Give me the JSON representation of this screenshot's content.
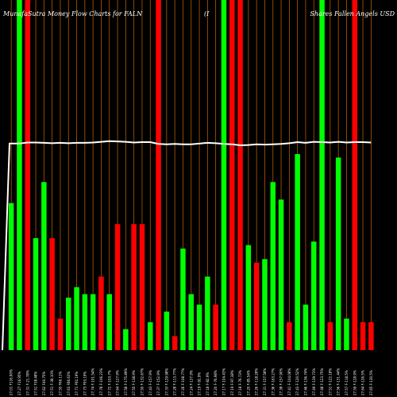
{
  "header": {
    "title_left": "MunafaSutra  Money Flow  Charts for FALN",
    "title_mid": "(I",
    "title_right": "Shares Fallen Angels USD"
  },
  "colors": {
    "background": "#000000",
    "up": "#00ff00",
    "down": "#ff0000",
    "line": "#ffffff",
    "grid": "#b35a00"
  },
  "chart_data": {
    "type": "bar",
    "title": "MunafaSutra  Money Flow  Charts for FALN (I Shares Fallen Angels USD",
    "ylim": [
      0,
      100
    ],
    "grid": true,
    "categories": [
      "27.01 F116.90%",
      "27.27 F16.95%",
      "27.31 F-21.78%",
      "27.51 F38.48%",
      "27.62 F40.75%",
      "27.51 F-38.10%",
      "27.55 F66.11%",
      "27.63 F86.63%",
      "27.71 F92.19%",
      "27.73 F93.19%",
      "27.74 F-101.54%",
      "27.78 F-106.23%",
      "27.72 F-103.7%",
      "27.64 F-127.9%",
      "27.58 F-175.89%",
      "27.55 F-138.9%",
      "27.50 F-132.67%",
      "27.43 F-157.9%",
      "27.37 F-152.9%",
      "27.33 F-129.98%",
      "27.28 F-113.77%",
      "27.26 F-108.77%",
      "27.24 F-137.9%",
      "27.19 F-92.9%",
      "27.18 F-82.9%",
      "27.20 F-76.98%",
      "27.17 F-104.43%",
      "27.19 F-97.38%",
      "27.18 F-76.73%",
      "27.20 F-85.54%",
      "27.26 F-118.28%",
      "27.31 F-157.58%",
      "27.36 F-163.27%",
      "27.38 F-157.90%",
      "27.41 F-104.08%",
      "27.43 F-120.52%",
      "27.46 F-136.74%",
      "27.49 F-139.73%",
      "27.48 F-123.75%",
      "27.51 F-122.18%",
      "27.56 F-131.44%",
      "27.57 F-118.5%",
      "27.59 F-128.9%",
      "27.64 F-126.5%",
      "27.65 F-130.5%"
    ],
    "series": [
      {
        "direction": [
          "up",
          "up",
          "down",
          "up",
          "up",
          "down",
          "down",
          "up",
          "up",
          "up",
          "up",
          "down",
          "up",
          "down",
          "up",
          "down",
          "down",
          "up",
          "down",
          "up",
          "down",
          "up",
          "up",
          "up",
          "up",
          "down",
          "up",
          "down",
          "down",
          "up",
          "down",
          "up",
          "up",
          "up",
          "down",
          "up",
          "up",
          "up",
          "up",
          "down",
          "up",
          "up",
          "down",
          "down",
          "down"
        ],
        "values": [
          42,
          100,
          100,
          32,
          48,
          32,
          9,
          15,
          18,
          16,
          16,
          21,
          16,
          36,
          6,
          36,
          36,
          8,
          100,
          11,
          4,
          29,
          16,
          13,
          21,
          13,
          100,
          100,
          100,
          30,
          25,
          26,
          48,
          43,
          8,
          56,
          13,
          31,
          100,
          8,
          55,
          9,
          100,
          8,
          8
        ]
      }
    ],
    "line": {
      "values": [
        59,
        59,
        59.3,
        59.3,
        59.2,
        59.1,
        59.2,
        59.1,
        59.2,
        59.2,
        59.3,
        59.5,
        59.7,
        59.6,
        59.5,
        59.3,
        59.4,
        59.4,
        58.9,
        58.8,
        58.9,
        58.8,
        58.8,
        59,
        59.2,
        59.1,
        58.9,
        58.8,
        58.5,
        58.6,
        58.8,
        58.7,
        58.8,
        58.9,
        59.1,
        59.4,
        59.2,
        59.5,
        59.4,
        59.3,
        59.5,
        59.3,
        59.4,
        59.4,
        59.3
      ]
    }
  }
}
